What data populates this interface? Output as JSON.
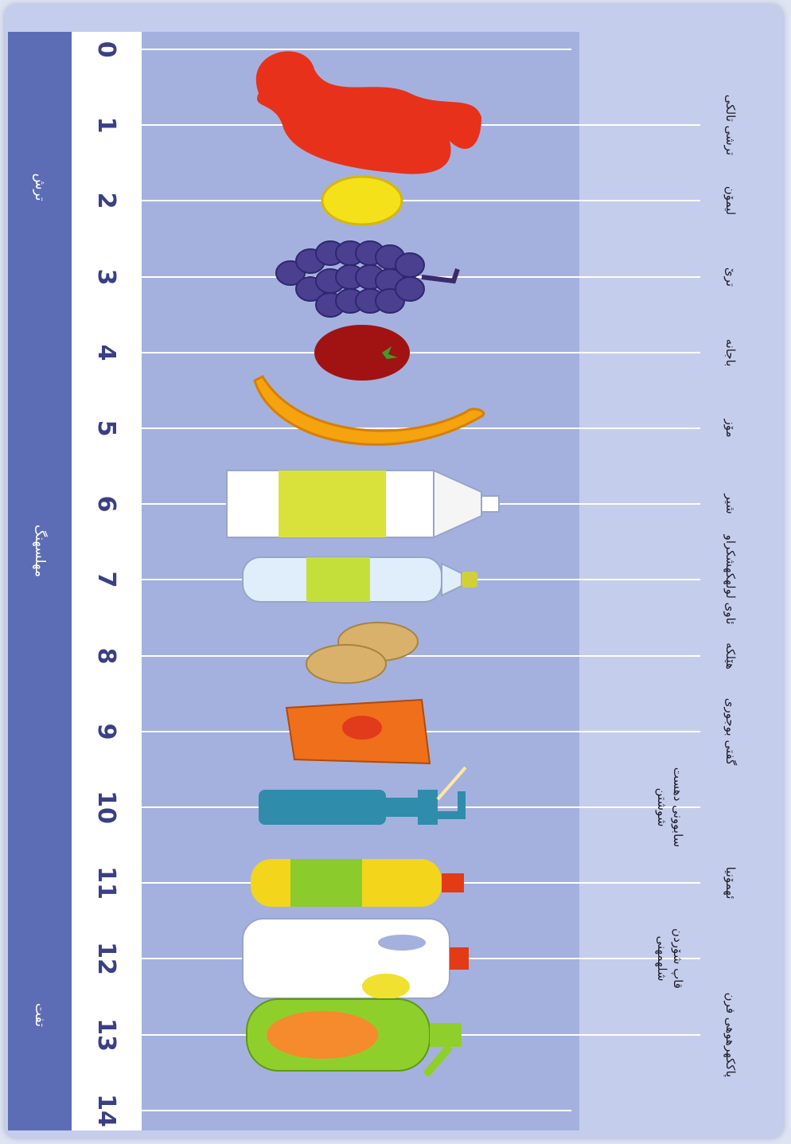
{
  "scale": {
    "numbers": [
      "0",
      "1",
      "2",
      "3",
      "4",
      "5",
      "6",
      "7",
      "8",
      "9",
      "10",
      "11",
      "12",
      "13",
      "14"
    ],
    "left_label": "ترش",
    "middle_label": "مهلسهنگ",
    "right_label": "تفت"
  },
  "items": [
    {
      "label": "ترشی تالکی",
      "ph": 1,
      "icon": "stomach-icon",
      "color": "#e8311b"
    },
    {
      "label": "لیمۆن",
      "ph": 2,
      "icon": "lemon-icon",
      "color": "#f5e11a"
    },
    {
      "label": "ترێ",
      "ph": 3,
      "icon": "grapes-icon",
      "color": "#4b3f8f"
    },
    {
      "label": "باجانه",
      "ph": 4,
      "icon": "tomato-icon",
      "color": "#a11212"
    },
    {
      "label": "مۆز",
      "ph": 5,
      "icon": "banana-icon",
      "color": "#f5a30e"
    },
    {
      "label": "شیر",
      "ph": 6,
      "icon": "milk-carton-icon",
      "color": "#d9e23b"
    },
    {
      "label": "ئاوی لولهکهشکراو",
      "ph": 7,
      "icon": "water-bottle-icon",
      "color": "#c5df3a"
    },
    {
      "label": "هێلکه",
      "ph": 8,
      "icon": "eggs-icon",
      "color": "#d9b16a"
    },
    {
      "label": "گفتی بوجوری",
      "ph": 9,
      "icon": "soap-box-icon",
      "color": "#ef6f1b"
    },
    {
      "label": "سابوونی دهست\nشوشتن",
      "ph": 10,
      "icon": "soap-dispenser-icon",
      "color": "#2f8cab"
    },
    {
      "label": "ئهمۆنیا",
      "ph": 11,
      "icon": "ammonia-bottle-icon",
      "color": "#f3d51c"
    },
    {
      "label": "قاپ شۆردن\nشلهمهنی",
      "ph": 12,
      "icon": "detergent-jug-icon",
      "color": "#ffffff"
    },
    {
      "label": "پاککهرهوهی فرن",
      "ph": 13,
      "icon": "spray-bottle-icon",
      "color": "#8fcf2c"
    }
  ]
}
